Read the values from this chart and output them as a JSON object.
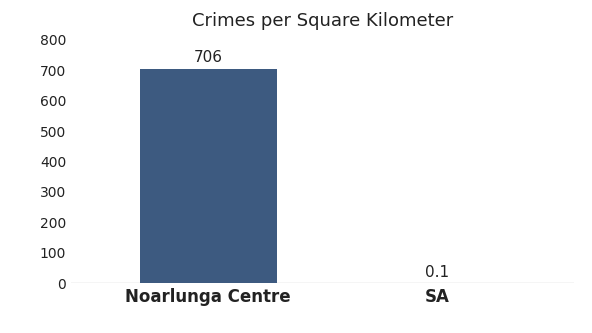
{
  "categories": [
    "Noarlunga Centre",
    "SA"
  ],
  "values": [
    706,
    0.1
  ],
  "bar_colors": [
    "#3d5a80",
    "#3d5a80"
  ],
  "title": "Crimes per Square Kilometer",
  "title_fontsize": 13,
  "value_labels": [
    "706",
    "0.1"
  ],
  "ylim": [
    0,
    800
  ],
  "yticks": [
    0,
    100,
    200,
    300,
    400,
    500,
    600,
    700,
    800
  ],
  "background_color": "#ffffff",
  "bar_width": 0.6,
  "label_fontsize": 12,
  "tick_fontsize": 10,
  "annotation_fontsize": 11,
  "bottom_line_color": "#cccccc",
  "text_color": "#222222"
}
